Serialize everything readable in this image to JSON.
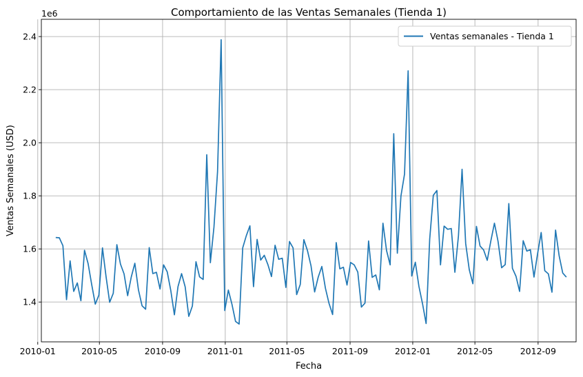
{
  "chart_data": {
    "type": "line",
    "title": "Comportamiento de las Ventas Semanales (Tienda 1)",
    "xlabel": "Fecha",
    "ylabel": "Ventas Semanales (USD)",
    "y_offset_label": "1e6",
    "xlim": [
      "2010-01-08",
      "2012-11-14"
    ],
    "ylim": [
      1.25,
      2.465
    ],
    "x_ticks": [
      "2010-01",
      "2010-05",
      "2010-09",
      "2011-01",
      "2011-05",
      "2011-09",
      "2012-01",
      "2012-05",
      "2012-09"
    ],
    "y_ticks": [
      1.4,
      1.6,
      1.8,
      2.0,
      2.2,
      2.4
    ],
    "y_tick_labels": [
      "1.4",
      "1.6",
      "1.8",
      "2.0",
      "2.2",
      "2.4"
    ],
    "grid": true,
    "legend_position": "top-right",
    "series": [
      {
        "name": "Ventas semanales - Tienda 1",
        "color": "#1f77b4",
        "x_start": "2010-02-05",
        "x_step_days": 7,
        "y_scale": "x1e6",
        "values": [
          1.643,
          1.642,
          1.612,
          1.409,
          1.555,
          1.44,
          1.472,
          1.405,
          1.595,
          1.545,
          1.466,
          1.392,
          1.426,
          1.604,
          1.495,
          1.399,
          1.433,
          1.616,
          1.543,
          1.506,
          1.424,
          1.494,
          1.546,
          1.446,
          1.386,
          1.373,
          1.605,
          1.507,
          1.512,
          1.449,
          1.54,
          1.514,
          1.443,
          1.352,
          1.458,
          1.507,
          1.457,
          1.346,
          1.385,
          1.552,
          1.495,
          1.485,
          1.955,
          1.548,
          1.682,
          1.891,
          2.388,
          1.368,
          1.445,
          1.392,
          1.327,
          1.317,
          1.604,
          1.65,
          1.687,
          1.458,
          1.636,
          1.558,
          1.576,
          1.541,
          1.496,
          1.614,
          1.561,
          1.565,
          1.455,
          1.628,
          1.604,
          1.428,
          1.466,
          1.635,
          1.594,
          1.536,
          1.438,
          1.494,
          1.534,
          1.452,
          1.395,
          1.353,
          1.624,
          1.525,
          1.531,
          1.464,
          1.549,
          1.54,
          1.513,
          1.381,
          1.396,
          1.63,
          1.493,
          1.502,
          1.446,
          1.697,
          1.594,
          1.54,
          2.034,
          1.584,
          1.799,
          1.882,
          2.271,
          1.498,
          1.55,
          1.459,
          1.394,
          1.319,
          1.637,
          1.802,
          1.82,
          1.54,
          1.686,
          1.674,
          1.677,
          1.512,
          1.65,
          1.9,
          1.621,
          1.522,
          1.469,
          1.685,
          1.611,
          1.596,
          1.557,
          1.63,
          1.697,
          1.629,
          1.529,
          1.541,
          1.771,
          1.527,
          1.497,
          1.44,
          1.631,
          1.592,
          1.597,
          1.494,
          1.582,
          1.662,
          1.518,
          1.506,
          1.437,
          1.671,
          1.574,
          1.509,
          1.494
        ]
      }
    ]
  }
}
